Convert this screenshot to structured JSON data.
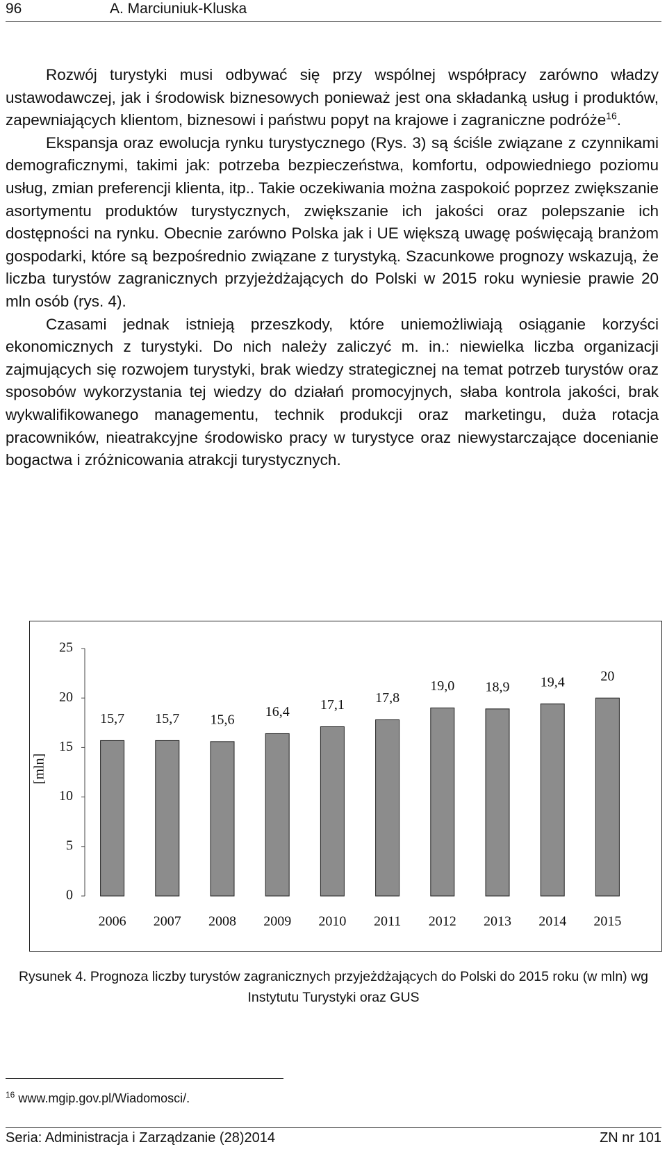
{
  "header": {
    "page_number": "96",
    "author": "A. Marciuniuk-Kluska"
  },
  "body": {
    "paragraphs": [
      {
        "text": "Rozwój turystyki musi odbywać się przy wspólnej współpracy zarówno władzy ustawodawczej, jak i środowisk biznesowych ponieważ jest ona składanką usług i produktów, zapewniających klientom, biznesowi i państwu popyt na krajowe i zagraniczne podróże",
        "footnote_ref": "16",
        "tail": "."
      },
      {
        "text": "Ekspansja oraz ewolucja rynku turystycznego (Rys. 3) są ściśle związane z czynnikami demograficznymi, takimi jak: potrzeba bezpieczeństwa, komfortu, odpowiedniego poziomu usług, zmian preferencji klienta, itp.. Takie oczekiwania można zaspokoić poprzez zwiększanie asortymentu produktów turystycznych, zwiększanie ich jakości oraz polepszanie ich dostępności na rynku. Obecnie zarówno Polska jak i UE większą uwagę poświęcają branżom gospodarki, które są bezpośrednio związane z turystyką. Szacunkowe prognozy wskazują, że liczba turystów zagranicznych przyjeżdżających do Polski w 2015 roku wyniesie prawie 20 mln osób (rys. 4)."
      },
      {
        "text": "Czasami jednak istnieją przeszkody, które uniemożliwiają osiąganie korzyści ekonomicznych z turystyki. Do nich należy zaliczyć m. in.: niewielka liczba organizacji zajmujących się rozwojem turystyki, brak wiedzy strategicznej na temat potrzeb turystów oraz sposobów wykorzystania tej wiedzy do działań promocyjnych, słaba kontrola jakości, brak wykwalifikowanego managementu, technik produkcji oraz marketingu, duża rotacja pracowników, nieatrakcyjne środowisko pracy w turystyce oraz niewystarczające docenianie bogactwa i zróżnicowania atrakcji turystycznych."
      }
    ]
  },
  "chart_data": {
    "type": "bar",
    "y_label": "[mln]",
    "categories": [
      "2006",
      "2007",
      "2008",
      "2009",
      "2010",
      "2011",
      "2012",
      "2013",
      "2014",
      "2015"
    ],
    "values": [
      15.7,
      15.7,
      15.6,
      16.4,
      17.1,
      17.8,
      19.0,
      18.9,
      19.4,
      20
    ],
    "value_labels": [
      "15,7",
      "15,7",
      "15,6",
      "16,4",
      "17,1",
      "17,8",
      "19,0",
      "18,9",
      "19,4",
      "20"
    ],
    "color": "#8c8c8c",
    "ylim": [
      0,
      25
    ],
    "yticks": [
      0,
      5,
      10,
      15,
      20,
      25
    ],
    "grid": false
  },
  "caption": "Rysunek 4. Prognoza liczby turystów zagranicznych przyjeżdżających do Polski do 2015 roku (w mln) wg Instytutu Turystyki oraz GUS",
  "footnote": {
    "number": "16",
    "text": "www.mgip.gov.pl/Wiadomosci/."
  },
  "footer": {
    "left": "Seria: Administracja i Zarządzanie (28)2014",
    "right": "ZN nr 101"
  }
}
